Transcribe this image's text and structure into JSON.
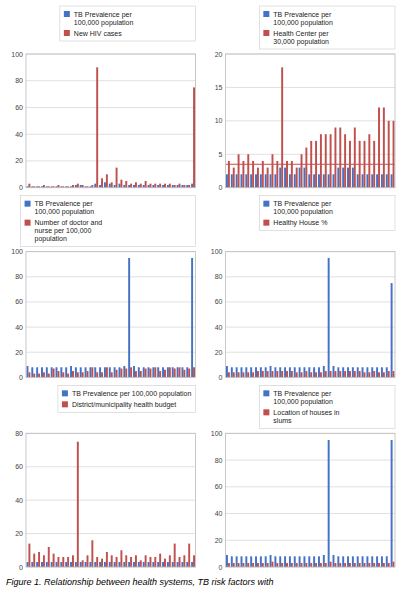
{
  "chart_data": [
    {
      "type": "bar",
      "categories": [
        null,
        null,
        null,
        null,
        null,
        null,
        null,
        null,
        null,
        null,
        null,
        null,
        null,
        null,
        null,
        null,
        null,
        null,
        null,
        null,
        null,
        null,
        null,
        null,
        null,
        null,
        null,
        null,
        null,
        null,
        null,
        null,
        null,
        null,
        null
      ],
      "series": [
        {
          "name": "TB Prevalence per\n100,000 population",
          "color": "#4472C4",
          "values": [
            1,
            1,
            1,
            1,
            1,
            1,
            1,
            1,
            1,
            1,
            2,
            2,
            1,
            1,
            3,
            2,
            4,
            3,
            2,
            3,
            2,
            2,
            2,
            2,
            2,
            2,
            2,
            2,
            2,
            2,
            2,
            2,
            2,
            2,
            3
          ]
        },
        {
          "name": "New HIV cases",
          "color": "#C0504D",
          "values": [
            3,
            1,
            1,
            2,
            1,
            1,
            2,
            1,
            1,
            2,
            3,
            2,
            1,
            2,
            90,
            7,
            10,
            4,
            15,
            6,
            5,
            3,
            4,
            3,
            5,
            3,
            3,
            3,
            3,
            3,
            2,
            3,
            2,
            2,
            75
          ]
        }
      ],
      "ylim": [
        0,
        100
      ],
      "yticks": [
        0,
        20,
        40,
        60,
        80,
        100
      ],
      "grid": true,
      "legend": "upper right",
      "tick_labels": "y"
    },
    {
      "type": "bar",
      "categories": [
        null,
        null,
        null,
        null,
        null,
        null,
        null,
        null,
        null,
        null,
        null,
        null,
        null,
        null,
        null,
        null,
        null,
        null,
        null,
        null,
        null,
        null,
        null,
        null,
        null,
        null,
        null,
        null,
        null,
        null,
        null,
        null,
        null,
        null,
        null
      ],
      "series": [
        {
          "name": "TB Prevalence per\n100,000 population",
          "color": "#4472C4",
          "values": [
            2,
            2,
            2,
            2,
            2,
            2,
            2,
            2,
            2,
            2,
            2,
            3,
            3,
            2,
            2,
            3,
            3,
            2,
            2,
            2,
            2,
            2,
            2,
            3,
            3,
            3,
            3,
            2,
            2,
            2,
            2,
            2,
            2,
            2,
            2
          ]
        },
        {
          "name": "Health Center per\n30,000 population",
          "color": "#C0504D",
          "values": [
            4,
            3,
            5,
            4,
            5,
            4,
            3,
            4,
            3,
            5,
            4,
            18,
            4,
            4,
            3,
            5,
            6,
            7,
            7,
            8,
            8,
            8,
            9,
            9,
            8,
            7,
            9,
            7,
            7,
            8,
            7,
            12,
            12,
            10,
            10
          ]
        }
      ],
      "hline": 3.5,
      "ylim": [
        0,
        20
      ],
      "yticks": [
        0,
        5,
        10,
        15,
        20
      ],
      "grid": true,
      "legend": "upper right",
      "tick_labels": "y"
    },
    {
      "type": "bar",
      "categories": [
        null,
        null,
        null,
        null,
        null,
        null,
        null,
        null,
        null,
        null,
        null,
        null,
        null,
        null,
        null,
        null,
        null,
        null,
        null,
        null,
        null,
        null,
        null,
        null,
        null,
        null,
        null,
        null,
        null,
        null,
        null,
        null,
        null,
        null,
        null
      ],
      "series": [
        {
          "name": "TB Prevalence per\n100,000 population",
          "color": "#4472C4",
          "values": [
            9,
            8,
            8,
            8,
            8,
            8,
            8,
            8,
            8,
            9,
            8,
            8,
            8,
            8,
            8,
            8,
            8,
            8,
            8,
            8,
            9,
            95,
            9,
            8,
            8,
            8,
            8,
            8,
            8,
            8,
            8,
            8,
            8,
            8,
            95
          ]
        },
        {
          "name": "Number of doctor and\nnurse per 100,000\npopulation",
          "color": "#C0504D",
          "values": [
            4,
            3,
            3,
            4,
            3,
            7,
            5,
            4,
            3,
            5,
            4,
            4,
            5,
            8,
            4,
            4,
            8,
            4,
            6,
            7,
            7,
            8,
            5,
            5,
            7,
            7,
            8,
            5,
            6,
            8,
            7,
            8,
            6,
            7,
            8
          ]
        }
      ],
      "ylim": [
        0,
        100
      ],
      "yticks": [
        0,
        20,
        40,
        60,
        80,
        100
      ],
      "grid": true,
      "legend": "upper right",
      "tick_labels": "y"
    },
    {
      "type": "bar",
      "categories": [
        null,
        null,
        null,
        null,
        null,
        null,
        null,
        null,
        null,
        null,
        null,
        null,
        null,
        null,
        null,
        null,
        null,
        null,
        null,
        null,
        null,
        null,
        null,
        null,
        null,
        null,
        null,
        null,
        null,
        null,
        null,
        null,
        null,
        null,
        null
      ],
      "series": [
        {
          "name": "TB Prevalence per\n100,000 population",
          "color": "#4472C4",
          "values": [
            9,
            8,
            8,
            8,
            8,
            8,
            8,
            8,
            8,
            9,
            8,
            8,
            8,
            8,
            8,
            8,
            8,
            8,
            8,
            8,
            9,
            95,
            9,
            8,
            8,
            8,
            8,
            8,
            8,
            8,
            8,
            8,
            8,
            8,
            75
          ]
        },
        {
          "name": "Healthy House %",
          "color": "#C0504D",
          "values": [
            4,
            4,
            4,
            4,
            4,
            4,
            5,
            5,
            5,
            5,
            5,
            5,
            5,
            5,
            4,
            4,
            5,
            4,
            4,
            4,
            5,
            5,
            5,
            5,
            5,
            5,
            5,
            5,
            4,
            4,
            5,
            4,
            4,
            5,
            5
          ]
        }
      ],
      "ylim": [
        0,
        100
      ],
      "yticks": [
        0,
        20,
        40,
        60,
        80,
        100
      ],
      "grid": true,
      "legend": "upper right",
      "tick_labels": "y"
    },
    {
      "type": "bar",
      "categories": [
        null,
        null,
        null,
        null,
        null,
        null,
        null,
        null,
        null,
        null,
        null,
        null,
        null,
        null,
        null,
        null,
        null,
        null,
        null,
        null,
        null,
        null,
        null,
        null,
        null,
        null,
        null,
        null,
        null,
        null,
        null,
        null,
        null,
        null,
        null
      ],
      "series": [
        {
          "name": "TB Prevalence per 100,000 population",
          "color": "#4472C4",
          "values": [
            3,
            3,
            3,
            3,
            3,
            3,
            3,
            3,
            3,
            3,
            3,
            3,
            3,
            3,
            3,
            3,
            3,
            3,
            3,
            3,
            3,
            3,
            3,
            3,
            3,
            3,
            3,
            3,
            3,
            3,
            3,
            3,
            3,
            3,
            3
          ]
        },
        {
          "name": "District/municipality health budget",
          "color": "#C0504D",
          "values": [
            14,
            8,
            9,
            7,
            12,
            8,
            6,
            6,
            6,
            7,
            75,
            4,
            7,
            16,
            6,
            5,
            9,
            7,
            6,
            10,
            7,
            6,
            7,
            4,
            7,
            6,
            6,
            8,
            5,
            7,
            14,
            6,
            7,
            14,
            7
          ]
        }
      ],
      "ylim": [
        0,
        80
      ],
      "yticks": [
        0,
        20,
        40,
        60,
        80
      ],
      "grid": true,
      "legend": "upper right",
      "tick_labels": "y"
    },
    {
      "type": "bar",
      "categories": [
        null,
        null,
        null,
        null,
        null,
        null,
        null,
        null,
        null,
        null,
        null,
        null,
        null,
        null,
        null,
        null,
        null,
        null,
        null,
        null,
        null,
        null,
        null,
        null,
        null,
        null,
        null,
        null,
        null,
        null,
        null,
        null,
        null,
        null,
        null
      ],
      "series": [
        {
          "name": "TB Prevalence per\n100,000 population",
          "color": "#4472C4",
          "values": [
            9,
            8,
            8,
            8,
            8,
            8,
            8,
            8,
            8,
            9,
            8,
            8,
            8,
            8,
            8,
            8,
            8,
            8,
            8,
            8,
            9,
            95,
            9,
            8,
            8,
            8,
            8,
            8,
            8,
            8,
            8,
            8,
            8,
            8,
            95
          ]
        },
        {
          "name": "Location of houses in\nslums",
          "color": "#C0504D",
          "values": [
            3,
            3,
            3,
            3,
            3,
            3,
            3,
            3,
            3,
            4,
            3,
            3,
            3,
            3,
            3,
            3,
            3,
            3,
            3,
            3,
            3,
            4,
            3,
            3,
            3,
            3,
            3,
            3,
            3,
            3,
            3,
            3,
            3,
            3,
            4
          ]
        }
      ],
      "ylim": [
        0,
        100
      ],
      "yticks": [
        0,
        20,
        40,
        60,
        80,
        100
      ],
      "grid": true,
      "legend": "upper right",
      "tick_labels": "y",
      "annotations": [
        "Figure 1. Relationship between health systems, TB risk factors with"
      ]
    }
  ]
}
